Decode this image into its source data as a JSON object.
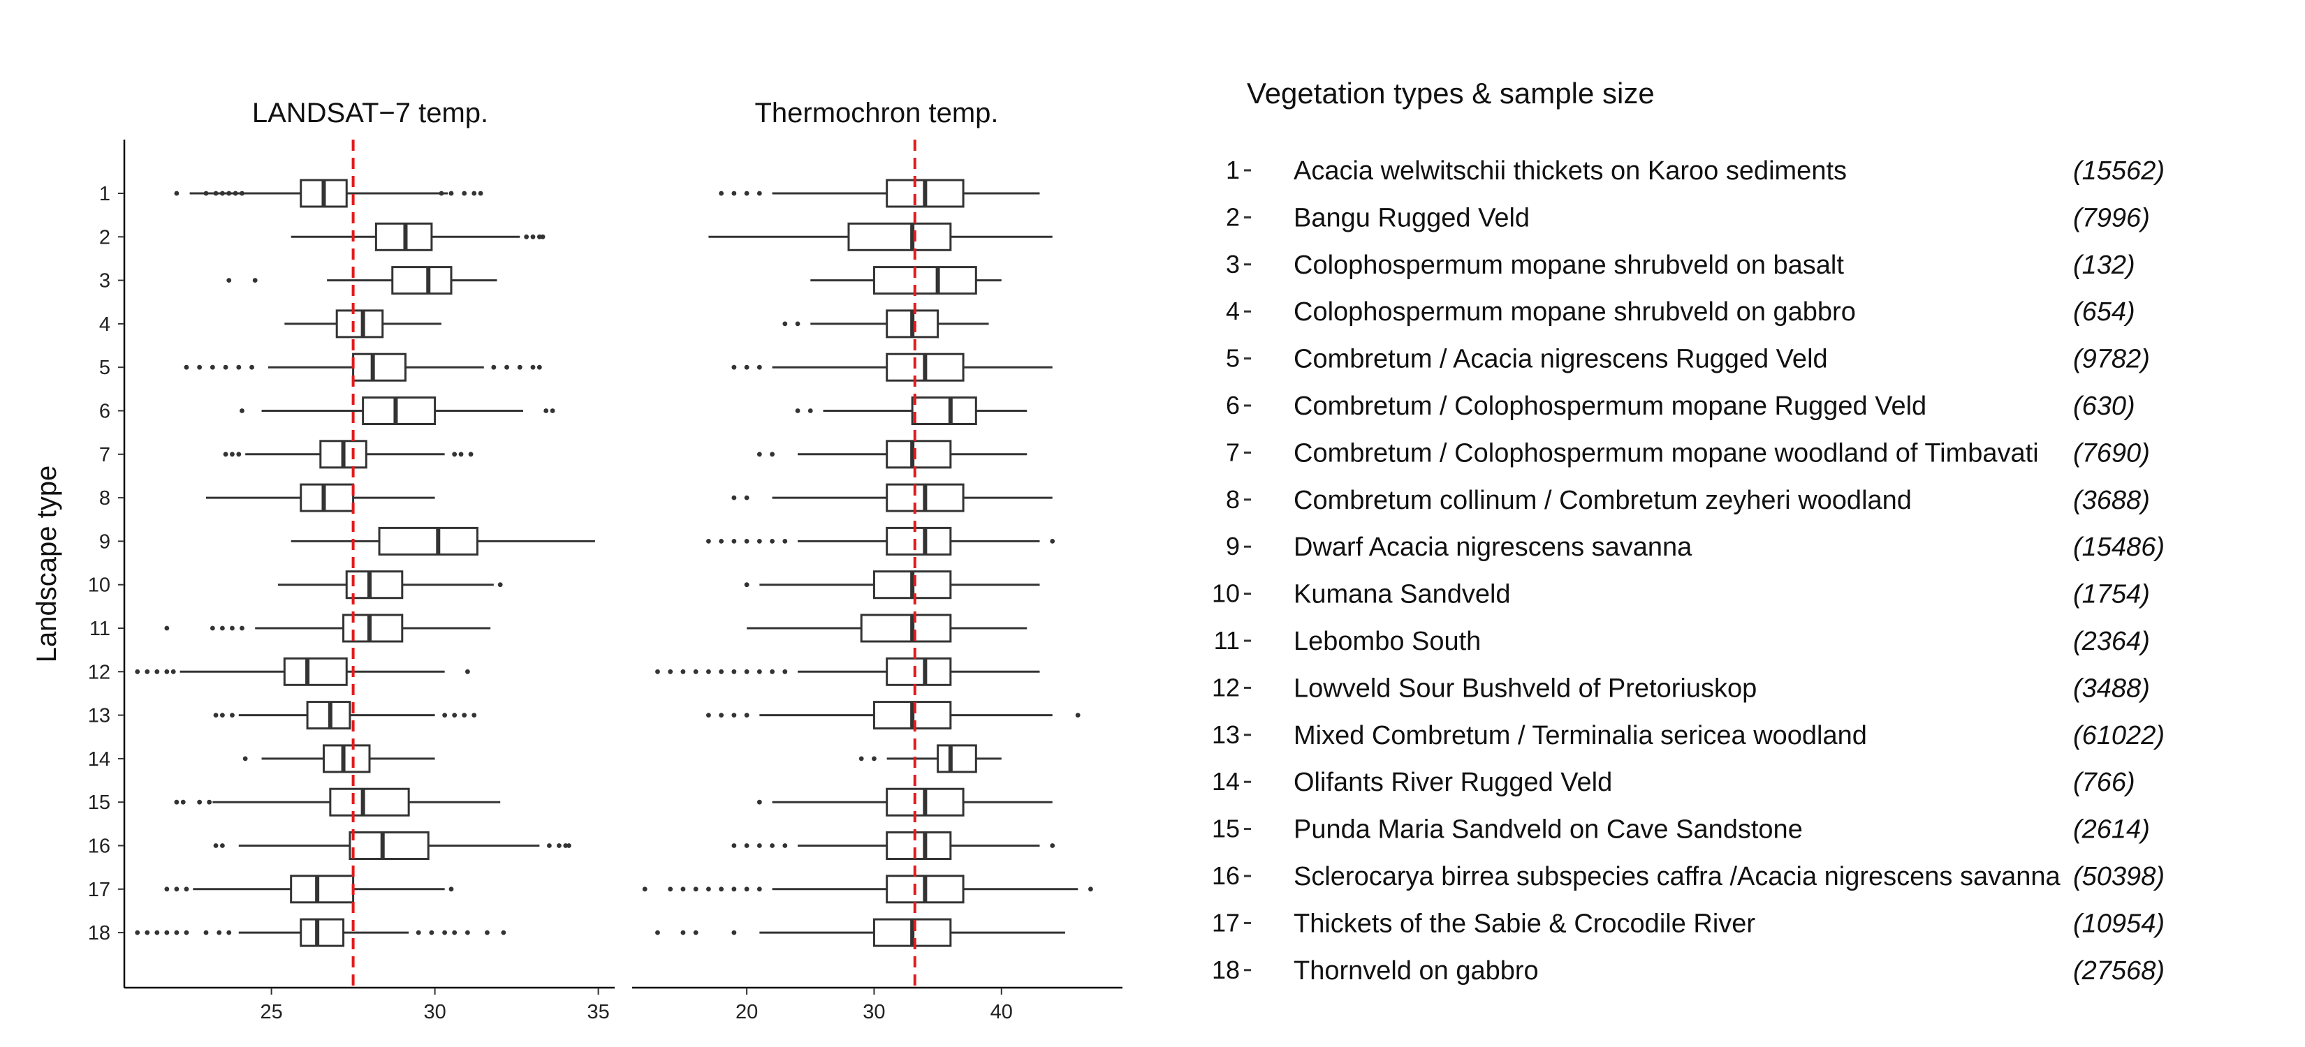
{
  "chart_data": {
    "type": "boxplot",
    "orientation": "horizontal",
    "ylabel": "Landscape type",
    "categories": [
      "1",
      "2",
      "3",
      "4",
      "5",
      "6",
      "7",
      "8",
      "9",
      "10",
      "11",
      "12",
      "13",
      "14",
      "15",
      "16",
      "17",
      "18"
    ],
    "reference_line": {
      "style": "dashed",
      "color": "#e31a1c"
    },
    "panels": [
      {
        "title": "LANDSAT−7 temp.",
        "xlim": [
          20.5,
          35.5
        ],
        "xticks": [
          25,
          30,
          35
        ],
        "reference_x": 27.5,
        "boxes": [
          {
            "q1": 25.9,
            "median": 26.6,
            "q3": 27.3,
            "wmin": 22.5,
            "wmax": 30.4,
            "outliers": [
              22.1,
              23.0,
              23.3,
              23.5,
              23.7,
              23.9,
              24.1,
              30.2,
              30.5,
              30.9,
              31.2,
              31.4
            ]
          },
          {
            "q1": 28.2,
            "median": 29.1,
            "q3": 29.9,
            "wmin": 25.6,
            "wmax": 32.6,
            "outliers": [
              32.8,
              33.0,
              33.2,
              33.3
            ]
          },
          {
            "q1": 28.7,
            "median": 29.8,
            "q3": 30.5,
            "wmin": 26.7,
            "wmax": 31.9,
            "outliers": [
              23.7,
              24.5
            ]
          },
          {
            "q1": 27.0,
            "median": 27.8,
            "q3": 28.4,
            "wmin": 25.4,
            "wmax": 30.2,
            "outliers": []
          },
          {
            "q1": 27.5,
            "median": 28.1,
            "q3": 29.1,
            "wmin": 24.9,
            "wmax": 31.5,
            "outliers": [
              22.4,
              22.8,
              23.2,
              23.6,
              24.0,
              24.4,
              31.8,
              32.2,
              32.6,
              33.0,
              33.2
            ]
          },
          {
            "q1": 27.8,
            "median": 28.8,
            "q3": 30.0,
            "wmin": 24.7,
            "wmax": 32.7,
            "outliers": [
              24.1,
              33.4,
              33.6
            ]
          },
          {
            "q1": 26.5,
            "median": 27.2,
            "q3": 27.9,
            "wmin": 24.2,
            "wmax": 30.3,
            "outliers": [
              23.6,
              23.8,
              24.0,
              30.6,
              30.8,
              31.1
            ]
          },
          {
            "q1": 25.9,
            "median": 26.6,
            "q3": 27.5,
            "wmin": 23.0,
            "wmax": 30.0,
            "outliers": []
          },
          {
            "q1": 28.3,
            "median": 30.1,
            "q3": 31.3,
            "wmin": 25.6,
            "wmax": 34.9,
            "outliers": []
          },
          {
            "q1": 27.3,
            "median": 28.0,
            "q3": 29.0,
            "wmin": 25.2,
            "wmax": 31.8,
            "outliers": [
              32.0
            ]
          },
          {
            "q1": 27.2,
            "median": 28.0,
            "q3": 29.0,
            "wmin": 24.5,
            "wmax": 31.7,
            "outliers": [
              21.8,
              23.2,
              23.5,
              23.8,
              24.1
            ]
          },
          {
            "q1": 25.4,
            "median": 26.1,
            "q3": 27.3,
            "wmin": 22.2,
            "wmax": 30.3,
            "outliers": [
              20.9,
              21.2,
              21.5,
              21.8,
              22.0,
              31.0
            ]
          },
          {
            "q1": 26.1,
            "median": 26.8,
            "q3": 27.4,
            "wmin": 24.0,
            "wmax": 30.0,
            "outliers": [
              23.3,
              23.5,
              23.8,
              30.3,
              30.6,
              30.9,
              31.2
            ]
          },
          {
            "q1": 26.6,
            "median": 27.2,
            "q3": 28.0,
            "wmin": 24.7,
            "wmax": 30.0,
            "outliers": [
              24.2
            ]
          },
          {
            "q1": 26.8,
            "median": 27.8,
            "q3": 29.2,
            "wmin": 23.2,
            "wmax": 32.0,
            "outliers": [
              22.1,
              22.3,
              22.8,
              23.1
            ]
          },
          {
            "q1": 27.4,
            "median": 28.4,
            "q3": 29.8,
            "wmin": 24.0,
            "wmax": 33.2,
            "outliers": [
              23.3,
              23.5,
              33.5,
              33.8,
              34.0,
              34.1
            ]
          },
          {
            "q1": 25.6,
            "median": 26.4,
            "q3": 27.5,
            "wmin": 22.6,
            "wmax": 30.3,
            "outliers": [
              21.8,
              22.1,
              22.4,
              30.5
            ]
          },
          {
            "q1": 25.9,
            "median": 26.4,
            "q3": 27.2,
            "wmin": 24.0,
            "wmax": 29.2,
            "outliers": [
              20.9,
              21.2,
              21.5,
              21.8,
              22.1,
              22.4,
              23.0,
              23.4,
              23.7,
              29.5,
              29.9,
              30.3,
              30.6,
              31.0,
              31.6,
              32.1
            ]
          }
        ]
      },
      {
        "title": "Thermochron temp.",
        "xlim": [
          11,
          49.5
        ],
        "xticks": [
          20,
          30,
          40
        ],
        "reference_x": 33.2,
        "boxes": [
          {
            "q1": 31,
            "median": 34,
            "q3": 37,
            "wmin": 22,
            "wmax": 43,
            "outliers": [
              18,
              19,
              20,
              21
            ]
          },
          {
            "q1": 28,
            "median": 33,
            "q3": 36,
            "wmin": 17,
            "wmax": 44,
            "outliers": []
          },
          {
            "q1": 30,
            "median": 35,
            "q3": 38,
            "wmin": 25,
            "wmax": 40,
            "outliers": []
          },
          {
            "q1": 31,
            "median": 33,
            "q3": 35,
            "wmin": 25,
            "wmax": 39,
            "outliers": [
              23,
              24
            ]
          },
          {
            "q1": 31,
            "median": 34,
            "q3": 37,
            "wmin": 22,
            "wmax": 44,
            "outliers": [
              19,
              20,
              21
            ]
          },
          {
            "q1": 33,
            "median": 36,
            "q3": 38,
            "wmin": 26,
            "wmax": 42,
            "outliers": [
              24,
              25
            ]
          },
          {
            "q1": 31,
            "median": 33,
            "q3": 36,
            "wmin": 24,
            "wmax": 42,
            "outliers": [
              21,
              22
            ]
          },
          {
            "q1": 31,
            "median": 34,
            "q3": 37,
            "wmin": 22,
            "wmax": 44,
            "outliers": [
              19,
              20
            ]
          },
          {
            "q1": 31,
            "median": 34,
            "q3": 36,
            "wmin": 24,
            "wmax": 43,
            "outliers": [
              17,
              18,
              19,
              20,
              21,
              22,
              23,
              44
            ]
          },
          {
            "q1": 30,
            "median": 33,
            "q3": 36,
            "wmin": 21,
            "wmax": 43,
            "outliers": [
              20
            ]
          },
          {
            "q1": 29,
            "median": 33,
            "q3": 36,
            "wmin": 20,
            "wmax": 42,
            "outliers": []
          },
          {
            "q1": 31,
            "median": 34,
            "q3": 36,
            "wmin": 24,
            "wmax": 43,
            "outliers": [
              13,
              14,
              15,
              16,
              17,
              18,
              19,
              20,
              21,
              22,
              23
            ]
          },
          {
            "q1": 30,
            "median": 33,
            "q3": 36,
            "wmin": 21,
            "wmax": 44,
            "outliers": [
              17,
              18,
              19,
              20,
              46
            ]
          },
          {
            "q1": 35,
            "median": 36,
            "q3": 38,
            "wmin": 31,
            "wmax": 40,
            "outliers": [
              29,
              30
            ]
          },
          {
            "q1": 31,
            "median": 34,
            "q3": 37,
            "wmin": 22,
            "wmax": 44,
            "outliers": [
              21
            ]
          },
          {
            "q1": 31,
            "median": 34,
            "q3": 36,
            "wmin": 24,
            "wmax": 43,
            "outliers": [
              19,
              20,
              21,
              22,
              23,
              44
            ]
          },
          {
            "q1": 31,
            "median": 34,
            "q3": 37,
            "wmin": 22,
            "wmax": 46,
            "outliers": [
              12,
              14,
              15,
              16,
              17,
              18,
              19,
              20,
              21,
              47
            ]
          },
          {
            "q1": 30,
            "median": 33,
            "q3": 36,
            "wmin": 21,
            "wmax": 45,
            "outliers": [
              13,
              15,
              16,
              19
            ]
          }
        ]
      }
    ],
    "legend": {
      "title": "Vegetation types & sample size",
      "entries": [
        {
          "number": "1",
          "name": "Acacia welwitschii thickets on Karoo sediments",
          "n": "(15562)"
        },
        {
          "number": "2",
          "name": "Bangu Rugged Veld",
          "n": "(7996)"
        },
        {
          "number": "3",
          "name": "Colophospermum mopane shrubveld on basalt",
          "n": "(132)"
        },
        {
          "number": "4",
          "name": "Colophospermum mopane shrubveld on gabbro",
          "n": "(654)"
        },
        {
          "number": "5",
          "name": "Combretum / Acacia nigrescens Rugged Veld",
          "n": "(9782)"
        },
        {
          "number": "6",
          "name": "Combretum / Colophospermum mopane Rugged Veld",
          "n": "(630)"
        },
        {
          "number": "7",
          "name": "Combretum / Colophospermum mopane woodland of Timbavati",
          "n": "(7690)"
        },
        {
          "number": "8",
          "name": "Combretum collinum / Combretum zeyheri woodland",
          "n": "(3688)"
        },
        {
          "number": "9",
          "name": "Dwarf Acacia nigrescens savanna",
          "n": "(15486)"
        },
        {
          "number": "10",
          "name": "Kumana Sandveld",
          "n": "(1754)"
        },
        {
          "number": "11",
          "name": "Lebombo South",
          "n": "(2364)"
        },
        {
          "number": "12",
          "name": "Lowveld Sour Bushveld of Pretoriuskop",
          "n": "(3488)"
        },
        {
          "number": "13",
          "name": "Mixed Combretum / Terminalia sericea woodland",
          "n": "(61022)"
        },
        {
          "number": "14",
          "name": "Olifants River Rugged Veld",
          "n": "(766)"
        },
        {
          "number": "15",
          "name": "Punda Maria Sandveld on Cave Sandstone",
          "n": "(2614)"
        },
        {
          "number": "16",
          "name": "Sclerocarya birrea subspecies caffra /Acacia nigrescens savanna",
          "n": "(50398)"
        },
        {
          "number": "17",
          "name": "Thickets of the Sabie & Crocodile River",
          "n": "(10954)"
        },
        {
          "number": "18",
          "name": "Thornveld on gabbro",
          "n": "(27568)"
        }
      ]
    }
  }
}
